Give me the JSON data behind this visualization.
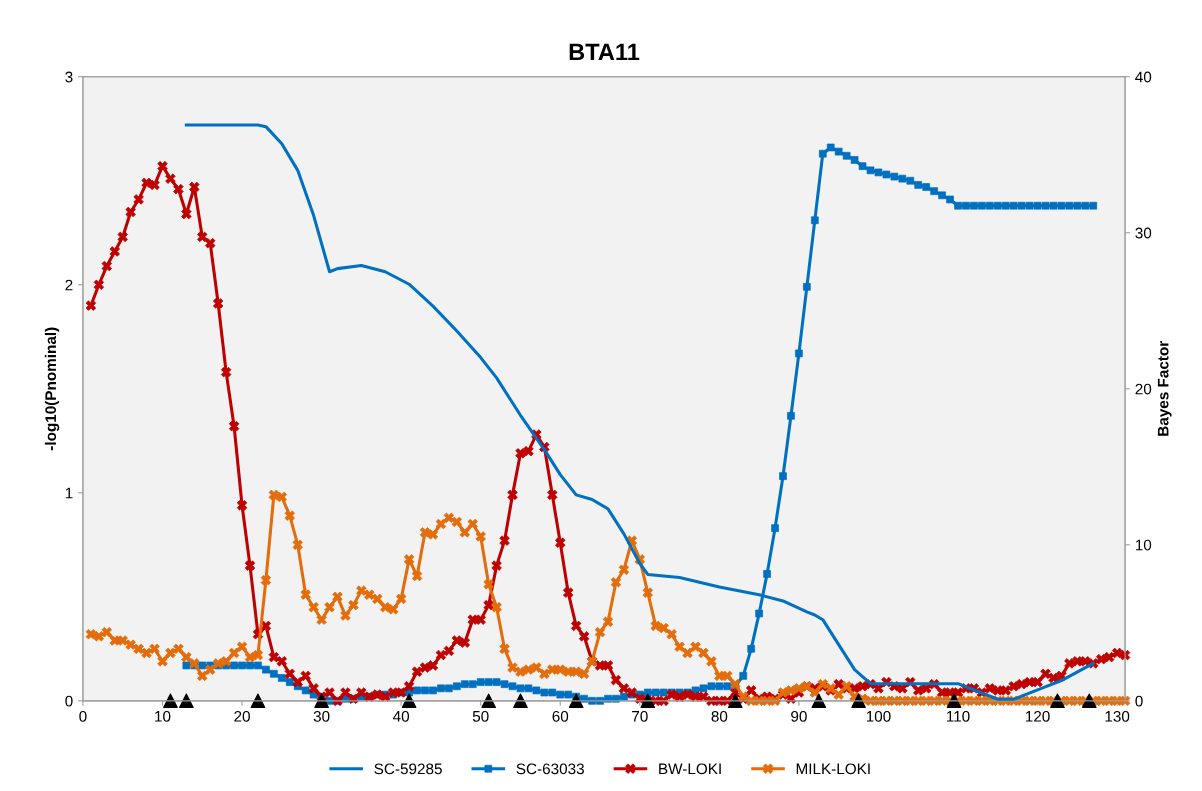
{
  "chart_data": {
    "type": "line",
    "title": "BTA11",
    "ylabel": "-log10(Pnominal)",
    "y2label": "Bayes Factor",
    "xlim": [
      0,
      131
    ],
    "xticks": [
      0,
      10,
      20,
      30,
      40,
      50,
      60,
      70,
      80,
      90,
      100,
      110,
      120,
      130
    ],
    "ylim": [
      0,
      3
    ],
    "yticks": [
      0,
      1,
      2,
      3
    ],
    "y2lim": [
      0,
      40
    ],
    "y2ticks": [
      0,
      10,
      20,
      30,
      40
    ],
    "grid": false,
    "legend": "bottom",
    "series": [
      {
        "name": "SC-59285",
        "color": "#0070c0",
        "axis": "y2",
        "marker": "none",
        "x": [
          13,
          22,
          23,
          25,
          27,
          29,
          31,
          32,
          35,
          38,
          41,
          44,
          47,
          50,
          52,
          55,
          58,
          60,
          62,
          64,
          66,
          68,
          70,
          71,
          75,
          80,
          85,
          88,
          91,
          92,
          93,
          95,
          97,
          99,
          105,
          110,
          113,
          115,
          117,
          120,
          123,
          127
        ],
        "values": [
          36.9,
          36.9,
          36.8,
          35.7,
          34.0,
          31.1,
          27.5,
          27.7,
          27.9,
          27.5,
          26.7,
          25.3,
          23.7,
          22.0,
          20.7,
          18.3,
          16.1,
          14.5,
          13.2,
          12.9,
          12.3,
          10.7,
          8.8,
          8.1,
          7.9,
          7.3,
          6.8,
          6.4,
          5.7,
          5.5,
          5.2,
          3.6,
          2.0,
          1.1,
          1.1,
          1.1,
          0.5,
          0.1,
          0.1,
          0.7,
          1.3,
          2.4
        ]
      },
      {
        "name": "SC-63033",
        "color": "#0070c0",
        "marker": "square",
        "x": [
          13,
          14,
          15,
          16,
          17,
          18,
          19,
          20,
          21,
          22,
          23,
          24,
          25,
          26,
          27,
          28,
          29,
          30,
          31,
          32,
          33,
          34,
          35,
          36,
          37,
          38,
          39,
          40,
          41,
          42,
          43,
          44,
          45,
          46,
          47,
          48,
          49,
          50,
          51,
          52,
          53,
          54,
          55,
          56,
          57,
          58,
          59,
          60,
          61,
          62,
          63,
          64,
          65,
          66,
          67,
          68,
          69,
          70,
          71,
          72,
          73,
          74,
          75,
          76,
          77,
          78,
          79,
          80,
          81,
          82,
          83,
          84,
          85,
          86,
          87,
          88,
          89,
          90,
          91,
          92,
          93,
          94,
          95,
          96,
          97,
          98,
          99,
          100,
          101,
          102,
          103,
          104,
          105,
          106,
          107,
          108,
          109,
          110,
          111,
          112,
          113,
          114,
          115,
          116,
          117,
          118,
          119,
          120,
          121,
          122,
          123,
          124,
          125,
          126,
          127
        ],
        "values": [
          0.17,
          0.17,
          0.17,
          0.17,
          0.17,
          0.17,
          0.17,
          0.17,
          0.17,
          0.17,
          0.15,
          0.13,
          0.11,
          0.09,
          0.07,
          0.05,
          0.03,
          0.02,
          0.0,
          0.0,
          0.01,
          0.01,
          0.02,
          0.02,
          0.03,
          0.03,
          0.03,
          0.04,
          0.04,
          0.05,
          0.05,
          0.05,
          0.06,
          0.06,
          0.07,
          0.08,
          0.08,
          0.09,
          0.09,
          0.09,
          0.08,
          0.07,
          0.06,
          0.06,
          0.05,
          0.04,
          0.04,
          0.03,
          0.03,
          0.02,
          0.01,
          0.0,
          0.0,
          0.01,
          0.01,
          0.02,
          0.03,
          0.03,
          0.04,
          0.04,
          0.04,
          0.04,
          0.04,
          0.04,
          0.05,
          0.06,
          0.07,
          0.07,
          0.07,
          0.07,
          0.12,
          0.25,
          0.42,
          0.61,
          0.83,
          1.08,
          1.37,
          1.67,
          1.99,
          2.31,
          2.63,
          2.66,
          2.64,
          2.62,
          2.6,
          2.57,
          2.55,
          2.54,
          2.53,
          2.52,
          2.51,
          2.5,
          2.48,
          2.47,
          2.45,
          2.43,
          2.41,
          2.38,
          2.38,
          2.38,
          2.38,
          2.38,
          2.38,
          2.38,
          2.38,
          2.38,
          2.38,
          2.38,
          2.38,
          2.38,
          2.38,
          2.38,
          2.38,
          2.38,
          2.38
        ]
      },
      {
        "name": "BW-LOKI",
        "color": "#c00000",
        "marker": "cross",
        "x": [
          1,
          2,
          3,
          4,
          5,
          6,
          7,
          8,
          9,
          10,
          11,
          12,
          13,
          14,
          15,
          16,
          17,
          18,
          19,
          20,
          21,
          22,
          23,
          24,
          25,
          26,
          27,
          28,
          29,
          30,
          31,
          32,
          33,
          34,
          35,
          36,
          37,
          38,
          39,
          40,
          41,
          42,
          43,
          44,
          45,
          46,
          47,
          48,
          49,
          50,
          51,
          52,
          53,
          54,
          55,
          56,
          57,
          58,
          59,
          60,
          61,
          62,
          63,
          64,
          65,
          66,
          67,
          68,
          69,
          70,
          71,
          72,
          73,
          74,
          75,
          76,
          77,
          78,
          79,
          80,
          81,
          82,
          83,
          84,
          85,
          86,
          87,
          88,
          89,
          90,
          91,
          92,
          93,
          94,
          95,
          96,
          97,
          98,
          99,
          100,
          101,
          102,
          103,
          104,
          105,
          106,
          107,
          108,
          109,
          110,
          111,
          112,
          113,
          114,
          115,
          116,
          117,
          118,
          119,
          120,
          121,
          122,
          123,
          124,
          125,
          126,
          127,
          128,
          129,
          130,
          131
        ],
        "values": [
          1.9,
          2.0,
          2.09,
          2.16,
          2.23,
          2.35,
          2.41,
          2.49,
          2.48,
          2.57,
          2.51,
          2.46,
          2.34,
          2.47,
          2.23,
          2.2,
          1.91,
          1.58,
          1.32,
          0.94,
          0.65,
          0.32,
          0.36,
          0.21,
          0.19,
          0.13,
          0.09,
          0.12,
          0.06,
          0.02,
          0.04,
          0.0,
          0.04,
          0.01,
          0.04,
          0.02,
          0.03,
          0.02,
          0.04,
          0.04,
          0.07,
          0.14,
          0.16,
          0.17,
          0.22,
          0.24,
          0.29,
          0.28,
          0.39,
          0.39,
          0.46,
          0.65,
          0.77,
          0.99,
          1.19,
          1.2,
          1.28,
          1.22,
          0.99,
          0.76,
          0.52,
          0.36,
          0.31,
          0.19,
          0.17,
          0.17,
          0.1,
          0.06,
          0.04,
          0.01,
          0.0,
          0.0,
          0.0,
          0.03,
          0.02,
          0.03,
          0.02,
          0.02,
          0.0,
          0.0,
          0.0,
          0.04,
          0.01,
          0.05,
          0.01,
          0.02,
          0.01,
          0.03,
          0.01,
          0.04,
          0.07,
          0.06,
          0.07,
          0.05,
          0.08,
          0.06,
          0.06,
          0.07,
          0.08,
          0.06,
          0.09,
          0.07,
          0.06,
          0.09,
          0.05,
          0.06,
          0.08,
          0.04,
          0.04,
          0.04,
          0.06,
          0.06,
          0.04,
          0.06,
          0.05,
          0.05,
          0.07,
          0.08,
          0.09,
          0.09,
          0.13,
          0.11,
          0.12,
          0.18,
          0.19,
          0.19,
          0.18,
          0.2,
          0.21,
          0.23,
          0.22
        ]
      },
      {
        "name": "MILK-LOKI",
        "color": "#e46c0a",
        "marker": "cross",
        "x": [
          1,
          2,
          3,
          4,
          5,
          6,
          7,
          8,
          9,
          10,
          11,
          12,
          13,
          14,
          15,
          16,
          17,
          18,
          19,
          20,
          21,
          22,
          23,
          24,
          25,
          26,
          27,
          28,
          29,
          30,
          31,
          32,
          33,
          34,
          35,
          36,
          37,
          38,
          39,
          40,
          41,
          42,
          43,
          44,
          45,
          46,
          47,
          48,
          49,
          50,
          51,
          52,
          53,
          54,
          55,
          56,
          57,
          58,
          59,
          60,
          61,
          62,
          63,
          64,
          65,
          66,
          67,
          68,
          69,
          70,
          71,
          72,
          73,
          74,
          75,
          76,
          77,
          78,
          79,
          80,
          81,
          82,
          83,
          84,
          85,
          86,
          87,
          88,
          89,
          90,
          91,
          92,
          93,
          94,
          95,
          96,
          97,
          98,
          99,
          100,
          101,
          102,
          103,
          104,
          105,
          106,
          107,
          108,
          109,
          110,
          111,
          112,
          113,
          114,
          115,
          116,
          117,
          118,
          119,
          120,
          121,
          122,
          123,
          124,
          125,
          126,
          127,
          128,
          129,
          130,
          131
        ],
        "values": [
          0.32,
          0.31,
          0.33,
          0.29,
          0.29,
          0.27,
          0.25,
          0.23,
          0.25,
          0.19,
          0.23,
          0.25,
          0.21,
          0.18,
          0.12,
          0.15,
          0.18,
          0.19,
          0.23,
          0.26,
          0.21,
          0.22,
          0.58,
          0.99,
          0.98,
          0.89,
          0.75,
          0.51,
          0.45,
          0.39,
          0.45,
          0.5,
          0.41,
          0.46,
          0.53,
          0.51,
          0.49,
          0.45,
          0.44,
          0.49,
          0.68,
          0.6,
          0.81,
          0.8,
          0.85,
          0.88,
          0.86,
          0.81,
          0.85,
          0.79,
          0.56,
          0.45,
          0.25,
          0.16,
          0.14,
          0.15,
          0.16,
          0.13,
          0.15,
          0.15,
          0.14,
          0.14,
          0.13,
          0.19,
          0.33,
          0.38,
          0.57,
          0.63,
          0.77,
          0.68,
          0.52,
          0.36,
          0.35,
          0.32,
          0.26,
          0.23,
          0.26,
          0.23,
          0.19,
          0.12,
          0.12,
          0.08,
          0.02,
          0.0,
          0.0,
          0.0,
          0.0,
          0.04,
          0.05,
          0.06,
          0.07,
          0.04,
          0.08,
          0.06,
          0.03,
          0.07,
          0.02,
          0.01,
          0.0,
          0.0,
          0.0,
          0.0,
          0.0,
          0.0,
          0.0,
          0.0,
          0.0,
          0.0,
          0.0,
          0.0,
          0.0,
          0.0,
          0.0,
          0.0,
          0.0,
          0.0,
          0.0,
          0.0,
          0.0,
          0.0,
          0.0,
          0.0,
          0.0,
          0.0,
          0.0,
          0.0,
          0.0,
          0.0,
          0.0,
          0.0,
          0.0
        ]
      },
      {
        "type": "scatter",
        "color": "#000000",
        "marker": "triangle",
        "x": [
          11,
          13,
          22,
          30,
          41,
          51,
          55,
          62,
          71,
          82,
          92.5,
          97.5,
          109.5,
          122.5,
          126.5
        ],
        "values": [
          0,
          0,
          0,
          0,
          0,
          0,
          0,
          0,
          0,
          0,
          0,
          0,
          0,
          0,
          0
        ]
      }
    ]
  }
}
